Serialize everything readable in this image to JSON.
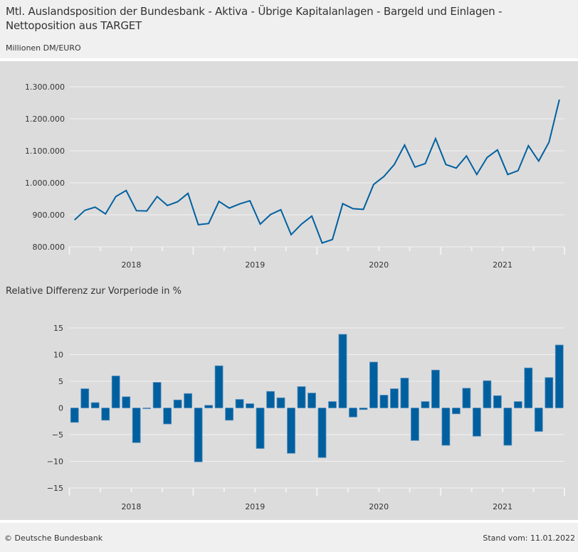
{
  "header": {
    "title": "Mtl. Auslandsposition der Bundesbank - Aktiva - Übrige Kapitalanlagen - Bargeld und Einlagen - Nettoposition aus TARGET",
    "unit": "Millionen DM/EURO"
  },
  "footer": {
    "copyright": "© Deutsche Bundesbank",
    "stand": "Stand vom: 11.01.2022"
  },
  "colors": {
    "series": "#00609f",
    "bar_edge": "#5b8fbe",
    "grid": "#f2f2f2",
    "chart_bg": "#dcdcdc"
  },
  "chart_data": [
    {
      "type": "line",
      "title": "Mtl. Auslandsposition der Bundesbank - Aktiva - Übrige Kapitalanlagen - Bargeld und Einlagen - Nettoposition aus TARGET",
      "ylabel": "Millionen DM/EURO",
      "xlabel": "",
      "ylim": [
        800000,
        1300000
      ],
      "yticks": [
        800000,
        900000,
        1000000,
        1100000,
        1200000,
        1300000
      ],
      "ytick_labels": [
        "800.000",
        "900.000",
        "1.000.000",
        "1.100.000",
        "1.200.000",
        "1.300.000"
      ],
      "x_start": "2018-01",
      "x_end": "2021-12",
      "year_labels": [
        "2018",
        "2019",
        "2020",
        "2021"
      ],
      "grid": true,
      "legend": "none",
      "series": [
        {
          "name": "Nettoposition aus TARGET",
          "values": [
            884000,
            914000,
            924000,
            903000,
            957000,
            976000,
            913000,
            912000,
            957000,
            929000,
            941000,
            967000,
            869000,
            873000,
            942000,
            921000,
            934000,
            944000,
            871000,
            901000,
            916000,
            838000,
            871000,
            896000,
            812000,
            823000,
            935000,
            919000,
            917000,
            995000,
            1020000,
            1057000,
            1118000,
            1049000,
            1060000,
            1138000,
            1057000,
            1046000,
            1084000,
            1026000,
            1079000,
            1103000,
            1026000,
            1038000,
            1116000,
            1068000,
            1127000,
            1260000
          ]
        }
      ]
    },
    {
      "type": "bar",
      "title": "Relative Differenz zur Vorperiode in %",
      "xlabel": "",
      "ylabel": "",
      "ylim": [
        -15,
        15
      ],
      "yticks": [
        -15,
        -10,
        -5,
        0,
        5,
        10,
        15
      ],
      "ytick_labels": [
        "−15",
        "−10",
        "−5",
        "0",
        "5",
        "10",
        "15"
      ],
      "x_start": "2018-01",
      "x_end": "2021-12",
      "year_labels": [
        "2018",
        "2019",
        "2020",
        "2021"
      ],
      "grid": true,
      "legend": "none",
      "series": [
        {
          "name": "Relative Differenz zur Vorperiode in %",
          "values": [
            -2.7,
            3.6,
            1.0,
            -2.3,
            6.0,
            2.1,
            -6.5,
            -0.1,
            4.8,
            -3.0,
            1.5,
            2.7,
            -10.1,
            0.5,
            7.9,
            -2.3,
            1.6,
            0.8,
            -7.6,
            3.1,
            1.9,
            -8.5,
            4.0,
            2.8,
            -9.3,
            1.2,
            13.8,
            -1.7,
            -0.3,
            8.6,
            2.4,
            3.6,
            5.6,
            -6.1,
            1.2,
            7.1,
            -7.0,
            -1.1,
            3.7,
            -5.3,
            5.1,
            2.3,
            -7.0,
            1.2,
            7.5,
            -4.4,
            5.7,
            11.8
          ]
        }
      ]
    }
  ]
}
